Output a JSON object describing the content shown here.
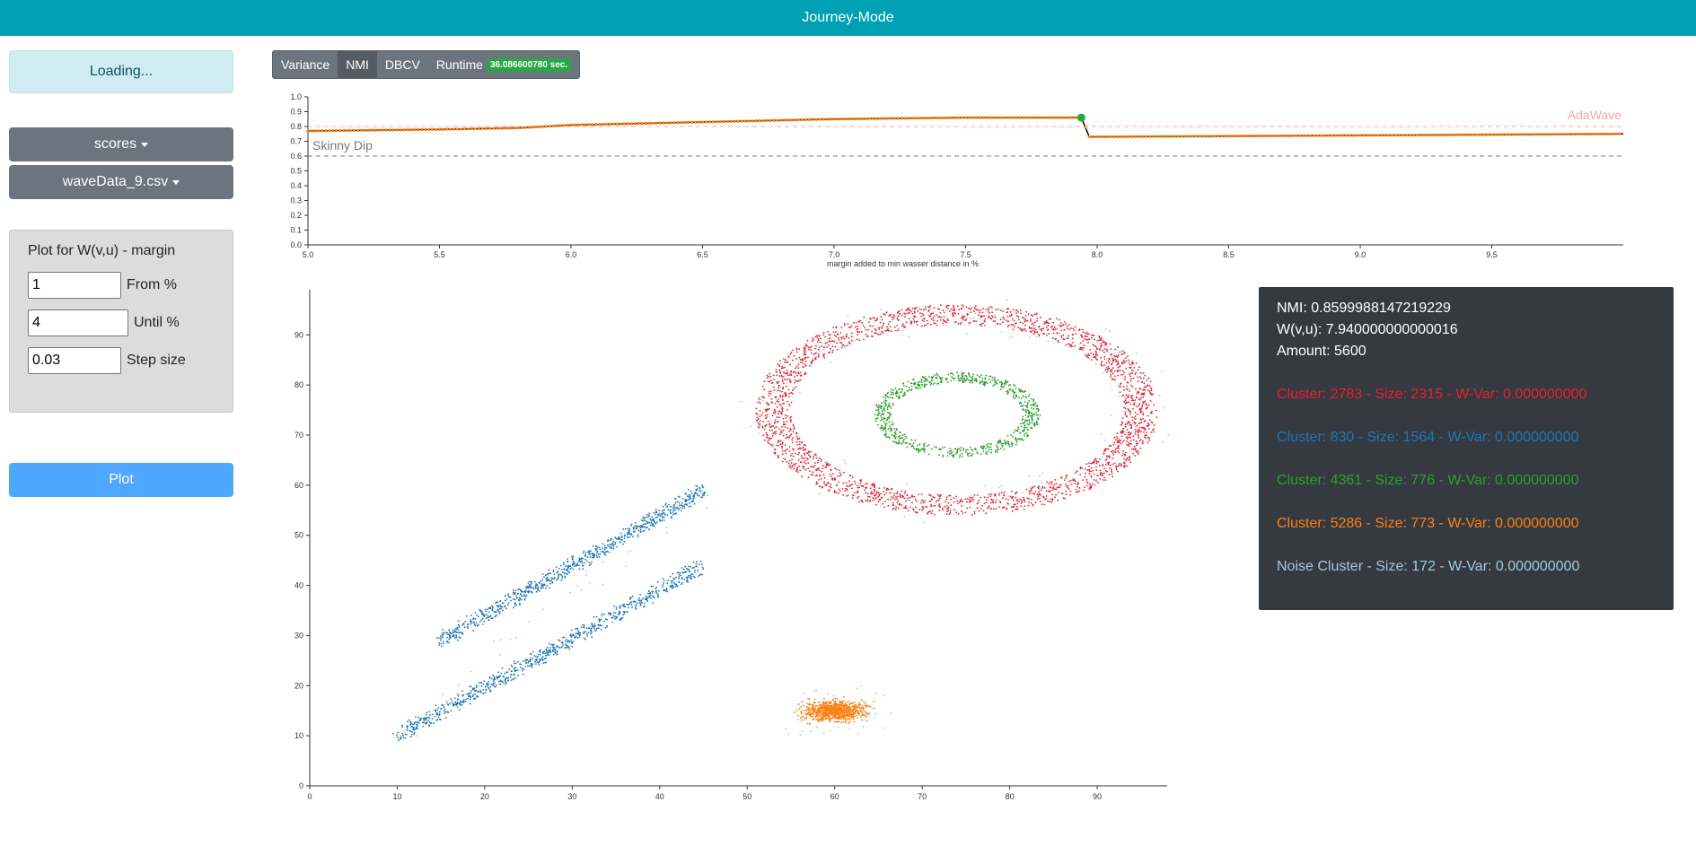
{
  "app": {
    "title": "Journey-Mode"
  },
  "sidebar": {
    "status": "Loading...",
    "scores_button": "scores",
    "dataset_button": "waveData_9.csv",
    "panel": {
      "title": "Plot for W(v,u) - margin",
      "from": {
        "value": "1",
        "label": "From %"
      },
      "until": {
        "value": "4",
        "label": "Until %"
      },
      "step": {
        "value": "0.03",
        "label": "Step size"
      }
    },
    "plot_button": "Plot"
  },
  "tabs": [
    {
      "label": "Variance",
      "active": false
    },
    {
      "label": "NMI",
      "active": true
    },
    {
      "label": "DBCV",
      "active": false
    },
    {
      "label": "Runtime",
      "active": false
    }
  ],
  "runtime_badge": "36.086600780 sec.",
  "info": {
    "nmi": "NMI: 0.8599988147219229",
    "wvu": "W(v,u): 7.940000000000016",
    "amount": "Amount: 5600",
    "clusters": [
      {
        "text": "Cluster: 2783 - Size: 2315 - W-Var: 0.000000000",
        "color": "#e8202b"
      },
      {
        "text": "Cluster: 830 - Size: 1564 - W-Var: 0.000000000",
        "color": "#1f77b4"
      },
      {
        "text": "Cluster: 4361 - Size: 776 - W-Var: 0.000000000",
        "color": "#2ca02c"
      },
      {
        "text": "Cluster: 5286 - Size: 773 - W-Var: 0.000000000",
        "color": "#ff7f0e"
      },
      {
        "text": "Noise Cluster - Size: 172 - W-Var: 0.000000000",
        "color": "#9ecae1"
      }
    ]
  },
  "chart_data": [
    {
      "type": "line",
      "xlabel": "margin added to min wasser distance in %",
      "ylabel": "",
      "xlim": [
        5.0,
        10.0
      ],
      "ylim": [
        0.0,
        1.0
      ],
      "xticks": [
        "5.0",
        "5.5",
        "6.0",
        "6.5",
        "7.0",
        "7.5",
        "8.0",
        "8.5",
        "9.0",
        "9.5"
      ],
      "yticks": [
        "0.0",
        "0.1",
        "0.2",
        "0.3",
        "0.4",
        "0.5",
        "0.6",
        "0.7",
        "0.8",
        "0.9",
        "1.0"
      ],
      "series": [
        {
          "name": "",
          "color": "#ff7f0e",
          "x": [
            5.0,
            5.5,
            5.8,
            6.0,
            6.5,
            7.0,
            7.5,
            7.94,
            7.97,
            8.5,
            9.0,
            9.5,
            10.0
          ],
          "y": [
            0.77,
            0.78,
            0.79,
            0.81,
            0.83,
            0.85,
            0.86,
            0.86,
            0.73,
            0.735,
            0.74,
            0.745,
            0.75
          ]
        }
      ],
      "selected_point": {
        "x": 7.94,
        "y": 0.86,
        "color": "#28a745"
      },
      "reference_lines": [
        {
          "label": "AdaWave",
          "y": 0.8,
          "color": "#f4a6b3"
        },
        {
          "label": "Skinny Dip",
          "y": 0.6,
          "color": "#777777"
        }
      ]
    },
    {
      "type": "scatter",
      "xlim": [
        0,
        98
      ],
      "ylim": [
        0,
        99
      ],
      "xticks": [
        "0",
        "10",
        "20",
        "30",
        "40",
        "50",
        "60",
        "70",
        "80",
        "90"
      ],
      "yticks": [
        "0",
        "10",
        "20",
        "30",
        "40",
        "50",
        "60",
        "70",
        "80",
        "90"
      ],
      "series": [
        {
          "name": "",
          "color": "#e8202b",
          "shape": "ellipse",
          "center": [
            74,
            75
          ],
          "radius": [
            21,
            19
          ],
          "width": 4,
          "count": 2315
        },
        {
          "name": "",
          "color": "#1f77b4",
          "shape": "line",
          "from": [
            10,
            10
          ],
          "to": [
            45,
            44
          ],
          "width": 2.5,
          "count": 782
        },
        {
          "name": "",
          "color": "#1f77b4",
          "shape": "line",
          "from": [
            15,
            29
          ],
          "to": [
            45,
            59
          ],
          "width": 2.5,
          "count": 782
        },
        {
          "name": "",
          "color": "#2ca02c",
          "shape": "ellipse",
          "center": [
            74,
            74
          ],
          "radius": [
            8.5,
            7.5
          ],
          "width": 2,
          "count": 776
        },
        {
          "name": "",
          "color": "#ff7f0e",
          "shape": "blob",
          "center": [
            60,
            15
          ],
          "radius": [
            3.5,
            2
          ],
          "count": 773
        },
        {
          "name": "",
          "color": "#9ecae1",
          "shape": "noise",
          "count": 172
        }
      ]
    }
  ]
}
